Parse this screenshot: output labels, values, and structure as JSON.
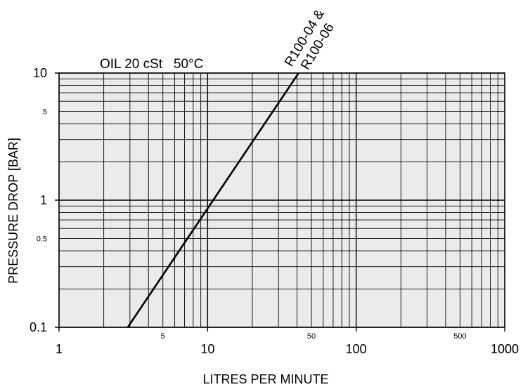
{
  "chart_data": {
    "type": "line",
    "title": "OIL 20 cSt   50°C",
    "xlabel": "LITRES PER MINUTE",
    "ylabel": "PRESSURE DROP [BAR]",
    "x_scale": "log",
    "y_scale": "log",
    "xlim": [
      1,
      1000
    ],
    "ylim": [
      0.1,
      10
    ],
    "grid": true,
    "x_major_ticks": [
      1,
      10,
      100,
      1000
    ],
    "x_major_tick_labels": [
      "1",
      "10",
      "100",
      "1000"
    ],
    "x_minor_tick_labels": [
      {
        "value": 5,
        "label": "5"
      },
      {
        "value": 50,
        "label": "50"
      },
      {
        "value": 500,
        "label": "500"
      }
    ],
    "y_major_ticks": [
      0.1,
      1,
      10
    ],
    "y_major_tick_labels": [
      "0.1",
      "1",
      "10"
    ],
    "y_minor_tick_labels": [
      {
        "value": 0.5,
        "label": "0.5"
      },
      {
        "value": 5,
        "label": "5"
      }
    ],
    "series": [
      {
        "name": "R100-04 & R100-06",
        "label_lines": [
          "R100-04 &",
          "R100-06"
        ],
        "x": [
          2.9,
          41
        ],
        "y": [
          0.1,
          10
        ],
        "color": "#000000"
      }
    ]
  },
  "colors": {
    "plot_background": "#ebebeb",
    "grid": "#000000",
    "line": "#000000"
  }
}
